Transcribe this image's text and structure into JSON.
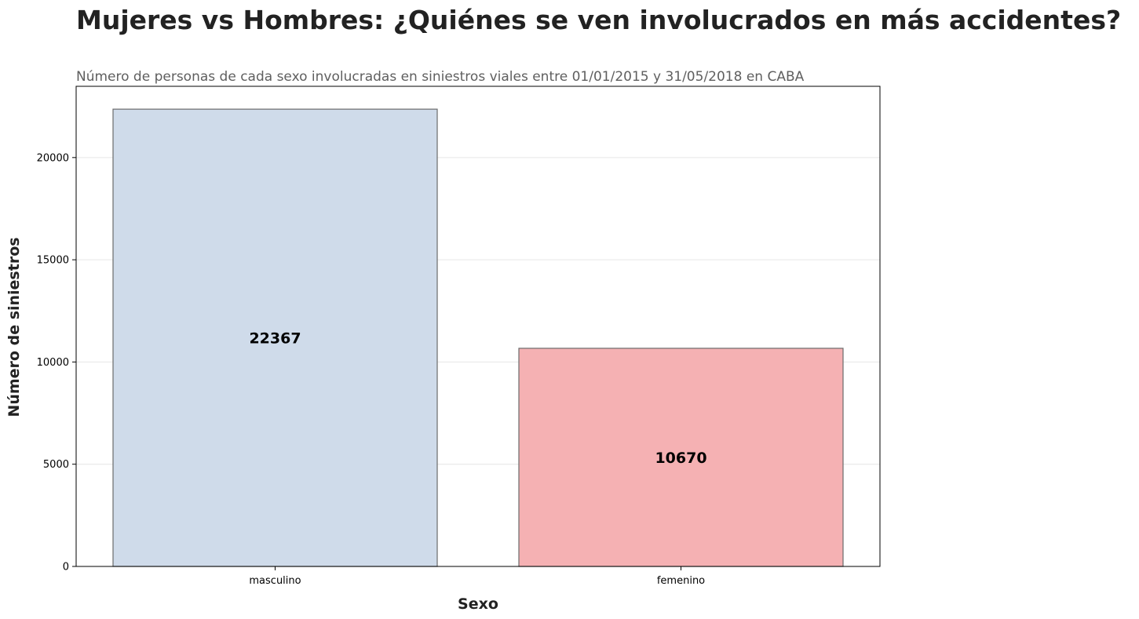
{
  "chart_data": {
    "type": "bar",
    "title": "Mujeres vs Hombres: ¿Quiénes se ven involucrados en más accidentes?",
    "subtitle": "Número de personas de cada sexo involucradas en siniestros viales entre 01/01/2015 y 31/05/2018 en CABA",
    "xlabel": "Sexo",
    "ylabel": "Número de siniestros",
    "categories": [
      "masculino",
      "femenino"
    ],
    "values": [
      22367,
      10670
    ],
    "data_labels": [
      "22367",
      "10670"
    ],
    "bar_colors": [
      "#cfdbea",
      "#f5b1b3"
    ],
    "bar_edge_color": "#6b6b6b",
    "ylim": [
      0,
      23485
    ],
    "yticks": [
      0,
      5000,
      10000,
      15000,
      20000
    ],
    "ytick_labels": [
      "0",
      "5000",
      "10000",
      "15000",
      "20000"
    ],
    "grid": "horizontal",
    "legend": "none"
  }
}
